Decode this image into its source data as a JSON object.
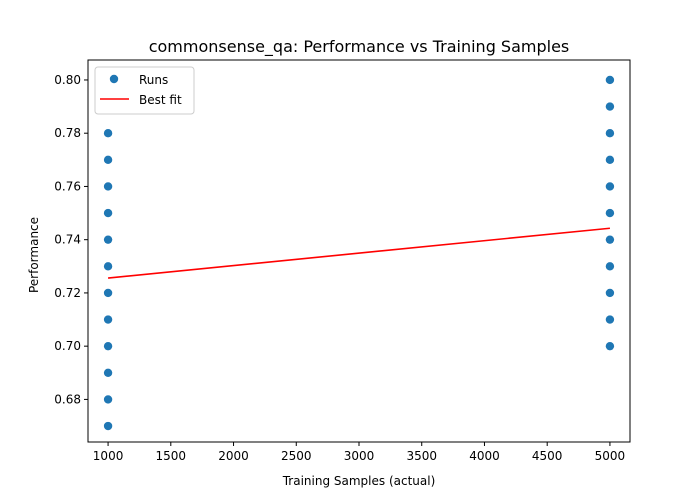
{
  "chart_data": {
    "type": "scatter",
    "title": "commonsense_qa: Performance vs Training Samples",
    "xlabel": "Training Samples (actual)",
    "ylabel": "Performance",
    "xlim": [
      840,
      5160
    ],
    "ylim": [
      0.664,
      0.8075
    ],
    "xticks": [
      1000,
      1500,
      2000,
      2500,
      3000,
      3500,
      4000,
      4500,
      5000
    ],
    "yticks": [
      0.68,
      0.7,
      0.72,
      0.74,
      0.76,
      0.78,
      0.8
    ],
    "ytick_labels": [
      "0.68",
      "0.70",
      "0.72",
      "0.74",
      "0.76",
      "0.78",
      "0.80"
    ],
    "grid": false,
    "legend_position": "top-left",
    "series": [
      {
        "name": "Runs",
        "kind": "scatter",
        "color": "#1f77b4",
        "points": [
          {
            "x": 1000,
            "y": 0.67
          },
          {
            "x": 1000,
            "y": 0.68
          },
          {
            "x": 1000,
            "y": 0.69
          },
          {
            "x": 1000,
            "y": 0.7
          },
          {
            "x": 1000,
            "y": 0.71
          },
          {
            "x": 1000,
            "y": 0.72
          },
          {
            "x": 1000,
            "y": 0.73
          },
          {
            "x": 1000,
            "y": 0.74
          },
          {
            "x": 1000,
            "y": 0.75
          },
          {
            "x": 1000,
            "y": 0.76
          },
          {
            "x": 1000,
            "y": 0.77
          },
          {
            "x": 1000,
            "y": 0.78
          },
          {
            "x": 5000,
            "y": 0.7
          },
          {
            "x": 5000,
            "y": 0.71
          },
          {
            "x": 5000,
            "y": 0.72
          },
          {
            "x": 5000,
            "y": 0.73
          },
          {
            "x": 5000,
            "y": 0.74
          },
          {
            "x": 5000,
            "y": 0.75
          },
          {
            "x": 5000,
            "y": 0.76
          },
          {
            "x": 5000,
            "y": 0.77
          },
          {
            "x": 5000,
            "y": 0.78
          },
          {
            "x": 5000,
            "y": 0.79
          },
          {
            "x": 5000,
            "y": 0.8
          }
        ]
      },
      {
        "name": "Best fit",
        "kind": "line",
        "color": "#ff0000",
        "points": [
          {
            "x": 1000,
            "y": 0.7256
          },
          {
            "x": 5000,
            "y": 0.7443
          }
        ]
      }
    ]
  }
}
